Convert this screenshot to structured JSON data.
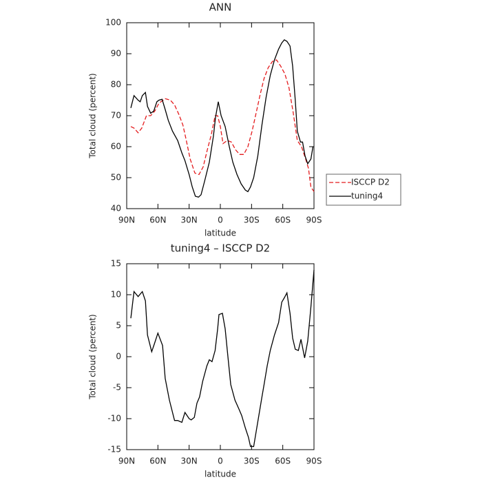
{
  "chart_data": [
    {
      "type": "line",
      "title": "ANN",
      "x_label": "latitude",
      "y_label": "Total cloud (percent)",
      "xlim": [
        90,
        -90
      ],
      "xticks": [
        {
          "value": 90,
          "label": "90N"
        },
        {
          "value": 60,
          "label": "60N"
        },
        {
          "value": 30,
          "label": "30N"
        },
        0,
        {
          "value": -30,
          "label": "30S"
        },
        {
          "value": -60,
          "label": "60S"
        },
        {
          "value": -90,
          "label": "90S"
        }
      ],
      "ylim": [
        40,
        100
      ],
      "yticks": [
        40,
        50,
        60,
        70,
        80,
        90,
        100
      ],
      "legend": "right",
      "series": [
        {
          "name": "ISCCP D2",
          "color": "#e41a1c",
          "dashed": true,
          "x": [
            86,
            83,
            79,
            75.5,
            71,
            67,
            63,
            59,
            53,
            48,
            44,
            40,
            36,
            33,
            29,
            24.5,
            20.5,
            16.5,
            12.5,
            8.6,
            5,
            2.6,
            0,
            -2.6,
            -6.6,
            -10.6,
            -14.6,
            -18.5,
            -22.5,
            -26.5,
            -30.5,
            -34.5,
            -38.4,
            -42,
            -46,
            -50,
            -54,
            -58,
            -62,
            -66,
            -70,
            -74,
            -78,
            -82,
            -84.7,
            -87,
            -90
          ],
          "values": [
            66.5,
            66,
            64.5,
            66,
            70,
            70,
            71.5,
            74,
            75.5,
            75,
            73.5,
            70.5,
            67,
            62.5,
            56,
            51.5,
            51,
            53.5,
            59,
            64,
            70,
            70,
            66.5,
            61,
            62,
            61.5,
            59,
            57.5,
            57.5,
            60,
            65,
            71,
            77,
            82,
            85.5,
            87.5,
            88,
            86,
            83.5,
            79,
            71,
            62,
            60,
            56,
            53,
            47,
            45.5
          ]
        },
        {
          "name": "tuning4",
          "color": "#000000",
          "dashed": false,
          "x": [
            86,
            83,
            79,
            77,
            75,
            72,
            70,
            67,
            64,
            61,
            59,
            56,
            53,
            50,
            46,
            41,
            37,
            34,
            30,
            27,
            24,
            21,
            18.5,
            15,
            10.6,
            6.6,
            4.6,
            2,
            -0.7,
            -4.6,
            -8.6,
            -12,
            -16,
            -20,
            -24,
            -26.5,
            -29,
            -32,
            -36,
            -40,
            -44,
            -48,
            -52,
            -56,
            -59,
            -61.5,
            -64,
            -67,
            -69.5,
            -72,
            -74,
            -77,
            -79,
            -81.4,
            -84,
            -87,
            -89
          ],
          "values": [
            72.5,
            76.5,
            75,
            74.5,
            76.5,
            77.5,
            73,
            70.8,
            71.5,
            74.5,
            75,
            75.3,
            72,
            68.5,
            65,
            62,
            58,
            55.5,
            51,
            47,
            44,
            43.7,
            44.5,
            49,
            55,
            63.5,
            69.5,
            74.5,
            70,
            66.5,
            60,
            55,
            51,
            48,
            46,
            45.5,
            47,
            50,
            57,
            67,
            76,
            83,
            88,
            91.5,
            93.5,
            94.5,
            94,
            92.5,
            86,
            75,
            65,
            61.5,
            61.5,
            57,
            54.5,
            56,
            60
          ]
        }
      ]
    },
    {
      "type": "line",
      "title": "tuning4 – ISCCP D2",
      "x_label": "latitude",
      "y_label": "Total cloud (percent)",
      "xlim": [
        90,
        -90
      ],
      "xticks": [
        {
          "value": 90,
          "label": "90N"
        },
        {
          "value": 60,
          "label": "60N"
        },
        {
          "value": 30,
          "label": "30N"
        },
        0,
        {
          "value": -30,
          "label": "30S"
        },
        {
          "value": -60,
          "label": "60S"
        },
        {
          "value": -90,
          "label": "90S"
        }
      ],
      "ylim": [
        -15,
        15
      ],
      "yticks": [
        -15,
        -10,
        -5,
        0,
        5,
        10,
        15
      ],
      "series": [
        {
          "name": "tuning4 – ISCCP D2",
          "color": "#000000",
          "dashed": false,
          "x": [
            86,
            83,
            79,
            75,
            72,
            70,
            66,
            63.5,
            60,
            55.5,
            53,
            49,
            44,
            41,
            37,
            34,
            30,
            28,
            25,
            22.5,
            20,
            17,
            13,
            10.6,
            8,
            5,
            2.6,
            1.3,
            -2,
            -4.6,
            -7.3,
            -10,
            -14,
            -18,
            -20.5,
            -24,
            -27,
            -29,
            -32,
            -36,
            -40,
            -42,
            -45,
            -48,
            -52,
            -56,
            -59,
            -61.5,
            -64,
            -67,
            -69.5,
            -72,
            -75,
            -77.5,
            -81,
            -84,
            -87,
            -90
          ],
          "values": [
            6.2,
            10.5,
            9.7,
            10.5,
            9,
            3.5,
            0.8,
            2,
            3.8,
            1.8,
            -3.5,
            -7,
            -10.3,
            -10.3,
            -10.6,
            -9,
            -10,
            -10.2,
            -9.8,
            -7.5,
            -6.5,
            -4,
            -1.5,
            -0.5,
            -0.8,
            1,
            4.5,
            6.8,
            7,
            4.5,
            0,
            -4.5,
            -7,
            -8.5,
            -9.5,
            -11.5,
            -13,
            -14.5,
            -14.5,
            -10.5,
            -6.5,
            -4.5,
            -1.5,
            1,
            3.5,
            5.5,
            8.8,
            9.5,
            10.3,
            7,
            3,
            1.2,
            1,
            2.8,
            -0.2,
            2.5,
            8,
            14
          ]
        }
      ]
    }
  ]
}
